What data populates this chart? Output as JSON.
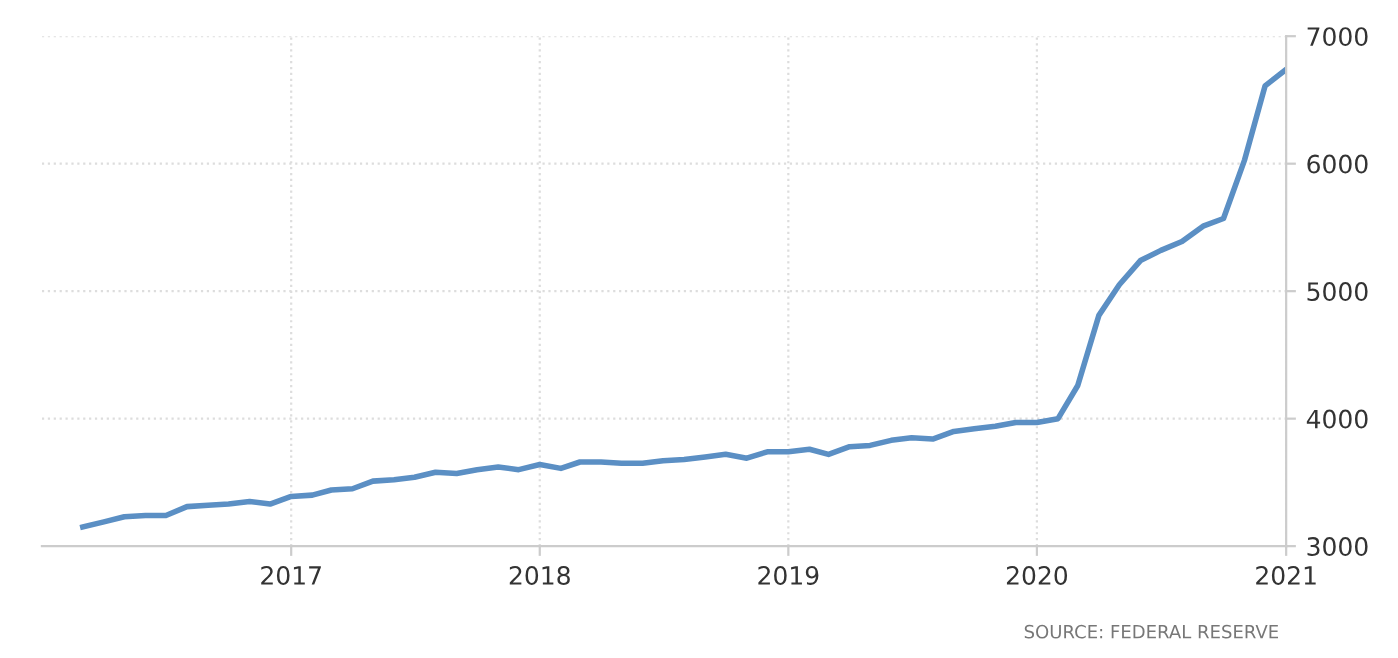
{
  "chart_data": {
    "type": "line",
    "x": [
      "2016-03",
      "2016-04",
      "2016-05",
      "2016-06",
      "2016-07",
      "2016-08",
      "2016-09",
      "2016-10",
      "2016-11",
      "2016-12",
      "2017-01",
      "2017-02",
      "2017-03",
      "2017-04",
      "2017-05",
      "2017-06",
      "2017-07",
      "2017-08",
      "2017-09",
      "2017-10",
      "2017-11",
      "2017-12",
      "2018-01",
      "2018-02",
      "2018-03",
      "2018-04",
      "2018-05",
      "2018-06",
      "2018-07",
      "2018-08",
      "2018-09",
      "2018-10",
      "2018-11",
      "2018-12",
      "2019-01",
      "2019-02",
      "2019-03",
      "2019-04",
      "2019-05",
      "2019-06",
      "2019-07",
      "2019-08",
      "2019-09",
      "2019-10",
      "2019-11",
      "2019-12",
      "2020-01",
      "2020-02",
      "2020-03",
      "2020-04",
      "2020-05",
      "2020-06",
      "2020-07",
      "2020-08",
      "2020-09",
      "2020-10",
      "2020-11",
      "2020-12",
      "2021-01"
    ],
    "series": [
      {
        "color": "#5b8fc4",
        "values": [
          3150,
          3190,
          3230,
          3240,
          3240,
          3310,
          3320,
          3330,
          3350,
          3330,
          3390,
          3400,
          3440,
          3450,
          3510,
          3520,
          3540,
          3580,
          3570,
          3600,
          3620,
          3600,
          3640,
          3610,
          3660,
          3660,
          3650,
          3650,
          3670,
          3680,
          3700,
          3720,
          3690,
          3740,
          3740,
          3760,
          3720,
          3780,
          3790,
          3830,
          3850,
          3840,
          3900,
          3920,
          3940,
          3970,
          3970,
          4000,
          4260,
          4810,
          5050,
          5240,
          5320,
          5390,
          5510,
          5570,
          6030,
          6610,
          6740
        ]
      }
    ],
    "xlim": [
      "2016-01",
      "2021-01"
    ],
    "xticks": [
      {
        "value": "2017-01",
        "label": "2017"
      },
      {
        "value": "2018-01",
        "label": "2018"
      },
      {
        "value": "2019-01",
        "label": "2019"
      },
      {
        "value": "2020-01",
        "label": "2020"
      },
      {
        "value": "2021-01",
        "label": "2021"
      }
    ],
    "ylim": [
      3000,
      7000
    ],
    "yticks": [
      3000,
      4000,
      5000,
      6000,
      7000
    ],
    "grid": true,
    "marker": "none",
    "line_style": "solid",
    "annotations": [
      "SOURCE: FEDERAL RESERVE"
    ]
  }
}
